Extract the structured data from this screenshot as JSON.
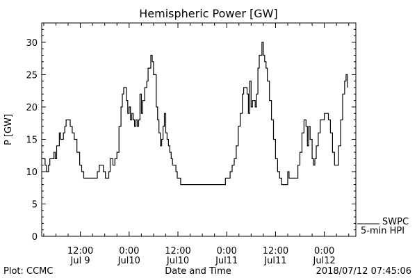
{
  "chart_data": {
    "type": "line",
    "title": "Hemispheric Power [GW]",
    "ylabel": "P [GW]",
    "xlabel": "Date and Time",
    "ylim": [
      0,
      33
    ],
    "xlim": [
      "2018-07-09 02:30",
      "2018-07-12 07:45"
    ],
    "grid": false,
    "y_ticks": [
      0,
      5,
      10,
      15,
      20,
      25,
      30
    ],
    "x_ticks": [
      {
        "time": "2018-07-09 12:00",
        "line1": "12:00",
        "line2": "Jul 9"
      },
      {
        "time": "2018-07-10 00:00",
        "line1": "0:00",
        "line2": "Jul10"
      },
      {
        "time": "2018-07-10 12:00",
        "line1": "12:00",
        "line2": "Jul10"
      },
      {
        "time": "2018-07-11 00:00",
        "line1": "0:00",
        "line2": "Jul11"
      },
      {
        "time": "2018-07-11 12:00",
        "line1": "12:00",
        "line2": "Jul11"
      },
      {
        "time": "2018-07-12 00:00",
        "line1": "0:00",
        "line2": "Jul12"
      }
    ],
    "legend": {
      "placement": "bottom-right",
      "entries": [
        "SWPC",
        "5-min HPI"
      ]
    },
    "series": [
      {
        "name": "5-min HPI",
        "color": "#000000",
        "points": [
          [
            "2018-07-09 02:30",
            12
          ],
          [
            "2018-07-09 03:00",
            12
          ],
          [
            "2018-07-09 03:20",
            11
          ],
          [
            "2018-07-09 03:40",
            10
          ],
          [
            "2018-07-09 04:10",
            11
          ],
          [
            "2018-07-09 04:30",
            12
          ],
          [
            "2018-07-09 05:10",
            12
          ],
          [
            "2018-07-09 05:30",
            13
          ],
          [
            "2018-07-09 05:50",
            12
          ],
          [
            "2018-07-09 06:10",
            14
          ],
          [
            "2018-07-09 06:50",
            16
          ],
          [
            "2018-07-09 07:10",
            15
          ],
          [
            "2018-07-09 07:50",
            16
          ],
          [
            "2018-07-09 08:10",
            17
          ],
          [
            "2018-07-09 08:30",
            18
          ],
          [
            "2018-07-09 09:10",
            18
          ],
          [
            "2018-07-09 09:30",
            17
          ],
          [
            "2018-07-09 10:00",
            16
          ],
          [
            "2018-07-09 10:30",
            15
          ],
          [
            "2018-07-09 11:10",
            13
          ],
          [
            "2018-07-09 11:50",
            11
          ],
          [
            "2018-07-09 12:20",
            10
          ],
          [
            "2018-07-09 12:50",
            9
          ],
          [
            "2018-07-09 15:40",
            9
          ],
          [
            "2018-07-09 16:10",
            10
          ],
          [
            "2018-07-09 16:40",
            11
          ],
          [
            "2018-07-09 17:10",
            11
          ],
          [
            "2018-07-09 17:40",
            10
          ],
          [
            "2018-07-09 18:10",
            9
          ],
          [
            "2018-07-09 18:40",
            9
          ],
          [
            "2018-07-09 19:00",
            10
          ],
          [
            "2018-07-09 19:20",
            12
          ],
          [
            "2018-07-09 19:40",
            12
          ],
          [
            "2018-07-09 20:00",
            11
          ],
          [
            "2018-07-09 20:30",
            12
          ],
          [
            "2018-07-09 21:00",
            13
          ],
          [
            "2018-07-09 21:30",
            17
          ],
          [
            "2018-07-09 22:00",
            20
          ],
          [
            "2018-07-09 22:20",
            22
          ],
          [
            "2018-07-09 22:40",
            23
          ],
          [
            "2018-07-09 23:00",
            23
          ],
          [
            "2018-07-09 23:20",
            21
          ],
          [
            "2018-07-09 23:40",
            19
          ],
          [
            "2018-07-10 00:00",
            20
          ],
          [
            "2018-07-10 00:20",
            18
          ],
          [
            "2018-07-10 00:40",
            19
          ],
          [
            "2018-07-10 01:00",
            18
          ],
          [
            "2018-07-10 01:20",
            17
          ],
          [
            "2018-07-10 01:40",
            18
          ],
          [
            "2018-07-10 02:00",
            17
          ],
          [
            "2018-07-10 02:20",
            18
          ],
          [
            "2018-07-10 02:40",
            22
          ],
          [
            "2018-07-10 03:00",
            19
          ],
          [
            "2018-07-10 03:20",
            21
          ],
          [
            "2018-07-10 03:50",
            23
          ],
          [
            "2018-07-10 04:20",
            24
          ],
          [
            "2018-07-10 04:40",
            26
          ],
          [
            "2018-07-10 05:00",
            26
          ],
          [
            "2018-07-10 05:20",
            28
          ],
          [
            "2018-07-10 05:40",
            27
          ],
          [
            "2018-07-10 06:00",
            25
          ],
          [
            "2018-07-10 06:20",
            25
          ],
          [
            "2018-07-10 06:40",
            20
          ],
          [
            "2018-07-10 07:00",
            18
          ],
          [
            "2018-07-10 07:20",
            16
          ],
          [
            "2018-07-10 07:40",
            14
          ],
          [
            "2018-07-10 08:00",
            15
          ],
          [
            "2018-07-10 08:20",
            17
          ],
          [
            "2018-07-10 08:40",
            19
          ],
          [
            "2018-07-10 09:00",
            16
          ],
          [
            "2018-07-10 09:20",
            15
          ],
          [
            "2018-07-10 09:40",
            14
          ],
          [
            "2018-07-10 10:00",
            13
          ],
          [
            "2018-07-10 10:20",
            12
          ],
          [
            "2018-07-10 10:40",
            11
          ],
          [
            "2018-07-10 11:10",
            11
          ],
          [
            "2018-07-10 11:30",
            10
          ],
          [
            "2018-07-10 11:50",
            9
          ],
          [
            "2018-07-10 12:20",
            9
          ],
          [
            "2018-07-10 12:40",
            8
          ],
          [
            "2018-07-10 23:10",
            8
          ],
          [
            "2018-07-10 23:40",
            9
          ],
          [
            "2018-07-11 00:20",
            9
          ],
          [
            "2018-07-11 00:50",
            10
          ],
          [
            "2018-07-11 01:20",
            11
          ],
          [
            "2018-07-11 01:50",
            12
          ],
          [
            "2018-07-11 02:20",
            14
          ],
          [
            "2018-07-11 02:50",
            17
          ],
          [
            "2018-07-11 03:20",
            19
          ],
          [
            "2018-07-11 03:50",
            22
          ],
          [
            "2018-07-11 04:10",
            23
          ],
          [
            "2018-07-11 04:40",
            23
          ],
          [
            "2018-07-11 05:00",
            22
          ],
          [
            "2018-07-11 05:20",
            19
          ],
          [
            "2018-07-11 05:40",
            24
          ],
          [
            "2018-07-11 06:00",
            20
          ],
          [
            "2018-07-11 06:20",
            21
          ],
          [
            "2018-07-11 06:40",
            21
          ],
          [
            "2018-07-11 07:00",
            20
          ],
          [
            "2018-07-11 07:20",
            22
          ],
          [
            "2018-07-11 07:40",
            26
          ],
          [
            "2018-07-11 08:00",
            28
          ],
          [
            "2018-07-11 08:20",
            28
          ],
          [
            "2018-07-11 08:40",
            30
          ],
          [
            "2018-07-11 09:00",
            28
          ],
          [
            "2018-07-11 09:20",
            27
          ],
          [
            "2018-07-11 09:40",
            26
          ],
          [
            "2018-07-11 10:00",
            24
          ],
          [
            "2018-07-11 10:30",
            21
          ],
          [
            "2018-07-11 11:00",
            18
          ],
          [
            "2018-07-11 11:30",
            15
          ],
          [
            "2018-07-11 12:00",
            12
          ],
          [
            "2018-07-11 12:30",
            10
          ],
          [
            "2018-07-11 13:00",
            9
          ],
          [
            "2018-07-11 13:30",
            8
          ],
          [
            "2018-07-11 14:30",
            8
          ],
          [
            "2018-07-11 15:00",
            10
          ],
          [
            "2018-07-11 15:20",
            9
          ],
          [
            "2018-07-11 17:00",
            9
          ],
          [
            "2018-07-11 17:30",
            11
          ],
          [
            "2018-07-11 18:00",
            13
          ],
          [
            "2018-07-11 18:30",
            16
          ],
          [
            "2018-07-11 19:00",
            18
          ],
          [
            "2018-07-11 19:30",
            17
          ],
          [
            "2018-07-11 19:50",
            14
          ],
          [
            "2018-07-11 20:10",
            17
          ],
          [
            "2018-07-11 20:30",
            15
          ],
          [
            "2018-07-11 21:00",
            12
          ],
          [
            "2018-07-11 21:20",
            11
          ],
          [
            "2018-07-11 21:40",
            12
          ],
          [
            "2018-07-11 22:00",
            14
          ],
          [
            "2018-07-11 22:30",
            16
          ],
          [
            "2018-07-11 23:00",
            18
          ],
          [
            "2018-07-11 23:40",
            18
          ],
          [
            "2018-07-12 00:00",
            19
          ],
          [
            "2018-07-12 00:30",
            19
          ],
          [
            "2018-07-12 01:00",
            18
          ],
          [
            "2018-07-12 01:30",
            16
          ],
          [
            "2018-07-12 02:00",
            13
          ],
          [
            "2018-07-12 02:30",
            11
          ],
          [
            "2018-07-12 03:00",
            11
          ],
          [
            "2018-07-12 03:30",
            14
          ],
          [
            "2018-07-12 04:00",
            18
          ],
          [
            "2018-07-12 04:30",
            22
          ],
          [
            "2018-07-12 05:00",
            24
          ],
          [
            "2018-07-12 05:20",
            25
          ],
          [
            "2018-07-12 05:40",
            23
          ]
        ]
      }
    ]
  },
  "footer": {
    "left": "Plot: CCMC",
    "right": "2018/07/12 07:45:06"
  }
}
